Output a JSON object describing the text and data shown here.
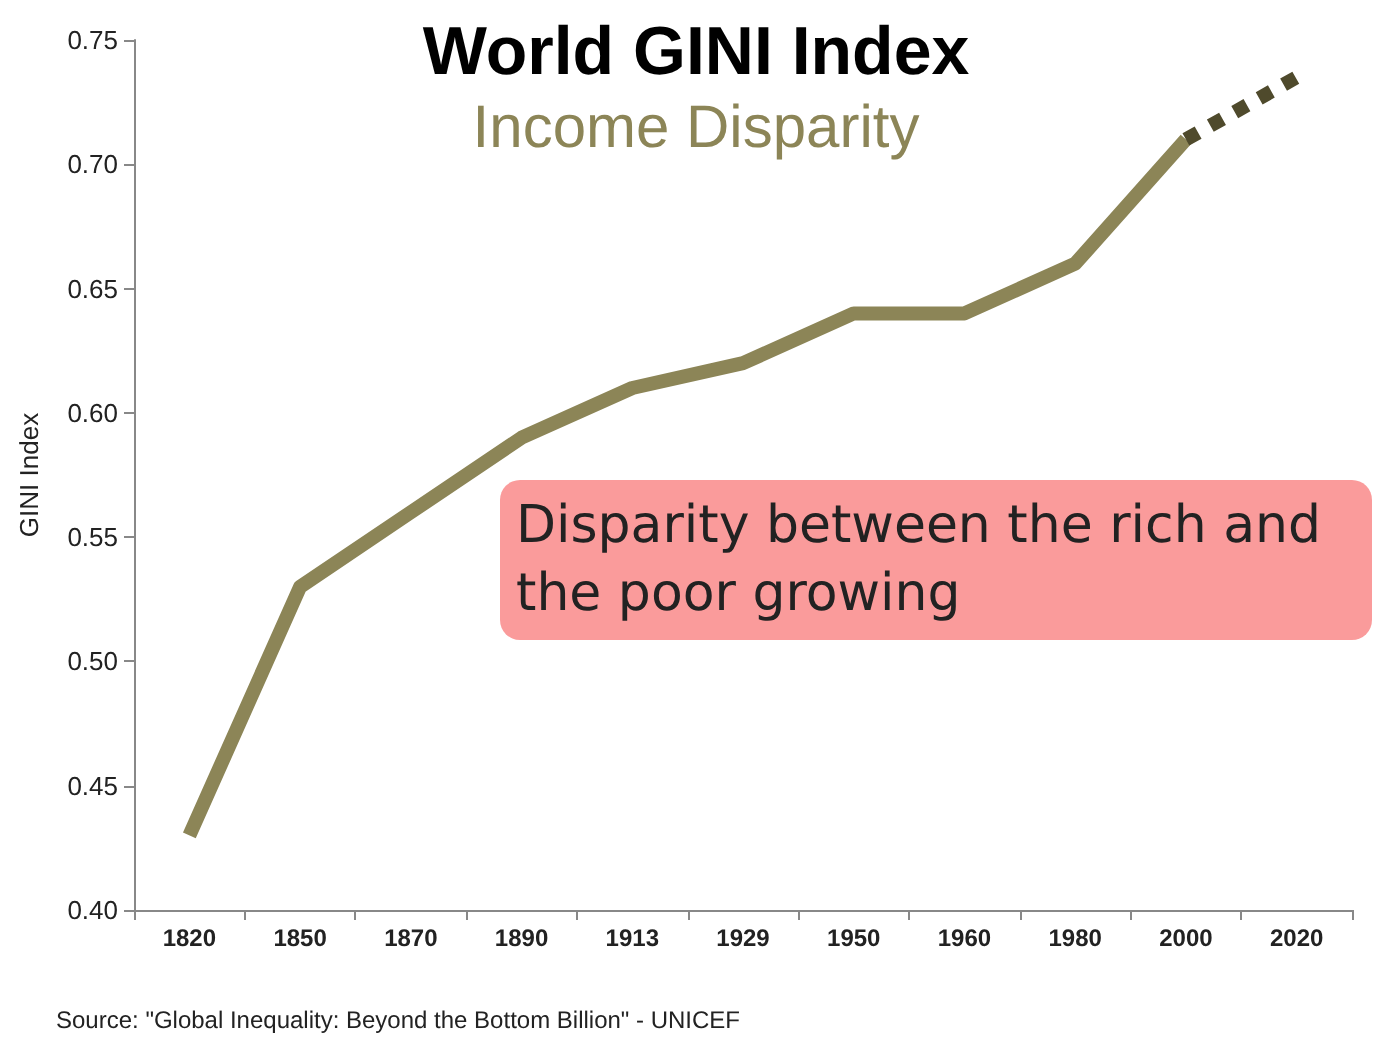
{
  "chart_data": {
    "type": "line",
    "title": "World GINI Index",
    "subtitle": "Income Disparity",
    "ylabel": "GINI Index",
    "categories": [
      "1820",
      "1850",
      "1870",
      "1890",
      "1913",
      "1929",
      "1950",
      "1960",
      "1980",
      "2000",
      "2020"
    ],
    "series": [
      {
        "color": "#8c8557",
        "line_style": "solid",
        "values": [
          0.43,
          0.53,
          0.56,
          0.59,
          0.61,
          0.62,
          0.64,
          0.64,
          0.66,
          0.71,
          null
        ]
      },
      {
        "color": "#4f4a2c",
        "line_style": "dotted",
        "values": [
          null,
          null,
          null,
          null,
          null,
          null,
          null,
          null,
          null,
          0.71,
          0.735
        ]
      }
    ],
    "ylim": [
      0.4,
      0.75
    ],
    "yticks": [
      {
        "value": 0.4,
        "label": "0.40"
      },
      {
        "value": 0.45,
        "label": "0.45"
      },
      {
        "value": 0.5,
        "label": "0.50"
      },
      {
        "value": 0.55,
        "label": "0.55"
      },
      {
        "value": 0.6,
        "label": "0.60"
      },
      {
        "value": 0.65,
        "label": "0.65"
      },
      {
        "value": 0.7,
        "label": "0.70"
      },
      {
        "value": 0.75,
        "label": "0.75"
      }
    ],
    "grid": false,
    "marker": "none",
    "annotations": [
      "Disparity between the rich and the poor growing",
      "Source: \"Global Inequality: Beyond the Bottom Billion\" - UNICEF"
    ]
  }
}
